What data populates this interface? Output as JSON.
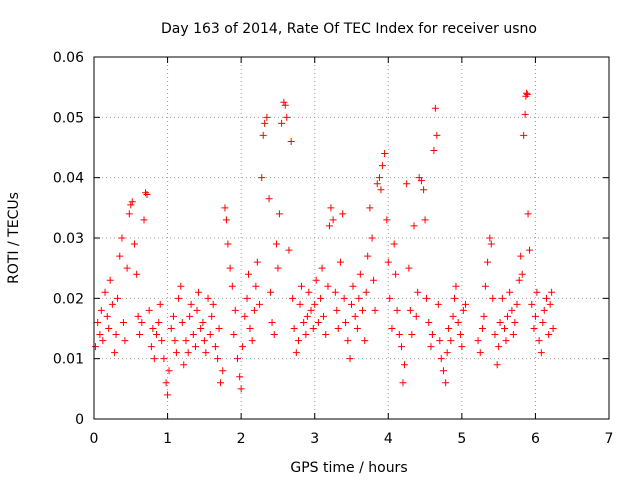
{
  "chart_data": {
    "type": "scatter",
    "title": "Day 163 of 2014, Rate Of TEC Index for receiver usno",
    "xlabel": "GPS time / hours",
    "ylabel": "ROTI / TECUs",
    "xlim": [
      0,
      7
    ],
    "ylim": [
      0,
      0.06
    ],
    "xticks": [
      0,
      1,
      2,
      3,
      4,
      5,
      6,
      7
    ],
    "xtick_labels": [
      "0",
      "1",
      "2",
      "3",
      "4",
      "5",
      "6",
      "7"
    ],
    "yticks": [
      0,
      0.01,
      0.02,
      0.03,
      0.04,
      0.05,
      0.06
    ],
    "ytick_labels": [
      "0",
      "0.01",
      "0.02",
      "0.03",
      "0.04",
      "0.05",
      "0.06"
    ],
    "grid": true,
    "marker": "plus",
    "color": "#ff0000",
    "points": [
      [
        0.02,
        0.012
      ],
      [
        0.05,
        0.016
      ],
      [
        0.08,
        0.014
      ],
      [
        0.1,
        0.018
      ],
      [
        0.12,
        0.013
      ],
      [
        0.15,
        0.021
      ],
      [
        0.18,
        0.017
      ],
      [
        0.2,
        0.015
      ],
      [
        0.22,
        0.023
      ],
      [
        0.25,
        0.019
      ],
      [
        0.28,
        0.011
      ],
      [
        0.3,
        0.014
      ],
      [
        0.32,
        0.02
      ],
      [
        0.35,
        0.027
      ],
      [
        0.38,
        0.03
      ],
      [
        0.4,
        0.016
      ],
      [
        0.42,
        0.013
      ],
      [
        0.45,
        0.025
      ],
      [
        0.48,
        0.034
      ],
      [
        0.5,
        0.0355
      ],
      [
        0.52,
        0.036
      ],
      [
        0.55,
        0.029
      ],
      [
        0.58,
        0.024
      ],
      [
        0.6,
        0.017
      ],
      [
        0.62,
        0.014
      ],
      [
        0.65,
        0.016
      ],
      [
        0.68,
        0.033
      ],
      [
        0.7,
        0.0375
      ],
      [
        0.72,
        0.0372
      ],
      [
        0.75,
        0.018
      ],
      [
        0.78,
        0.012
      ],
      [
        0.8,
        0.015
      ],
      [
        0.82,
        0.01
      ],
      [
        0.85,
        0.014
      ],
      [
        0.88,
        0.016
      ],
      [
        0.9,
        0.019
      ],
      [
        0.92,
        0.013
      ],
      [
        0.95,
        0.01
      ],
      [
        0.98,
        0.006
      ],
      [
        1.0,
        0.004
      ],
      [
        1.02,
        0.008
      ],
      [
        1.05,
        0.015
      ],
      [
        1.08,
        0.017
      ],
      [
        1.1,
        0.013
      ],
      [
        1.12,
        0.011
      ],
      [
        1.15,
        0.02
      ],
      [
        1.18,
        0.022
      ],
      [
        1.2,
        0.016
      ],
      [
        1.22,
        0.009
      ],
      [
        1.25,
        0.013
      ],
      [
        1.28,
        0.011
      ],
      [
        1.3,
        0.017
      ],
      [
        1.32,
        0.019
      ],
      [
        1.35,
        0.014
      ],
      [
        1.38,
        0.012
      ],
      [
        1.4,
        0.018
      ],
      [
        1.42,
        0.021
      ],
      [
        1.45,
        0.015
      ],
      [
        1.48,
        0.016
      ],
      [
        1.5,
        0.013
      ],
      [
        1.52,
        0.011
      ],
      [
        1.55,
        0.02
      ],
      [
        1.58,
        0.014
      ],
      [
        1.6,
        0.017
      ],
      [
        1.62,
        0.019
      ],
      [
        1.65,
        0.012
      ],
      [
        1.68,
        0.01
      ],
      [
        1.7,
        0.015
      ],
      [
        1.72,
        0.006
      ],
      [
        1.75,
        0.008
      ],
      [
        1.78,
        0.035
      ],
      [
        1.8,
        0.033
      ],
      [
        1.82,
        0.029
      ],
      [
        1.85,
        0.025
      ],
      [
        1.88,
        0.022
      ],
      [
        1.9,
        0.014
      ],
      [
        1.92,
        0.018
      ],
      [
        1.95,
        0.01
      ],
      [
        1.98,
        0.007
      ],
      [
        2.0,
        0.005
      ],
      [
        2.02,
        0.012
      ],
      [
        2.05,
        0.017
      ],
      [
        2.08,
        0.02
      ],
      [
        2.1,
        0.024
      ],
      [
        2.12,
        0.015
      ],
      [
        2.15,
        0.013
      ],
      [
        2.18,
        0.018
      ],
      [
        2.2,
        0.022
      ],
      [
        2.22,
        0.026
      ],
      [
        2.25,
        0.019
      ],
      [
        2.28,
        0.04
      ],
      [
        2.3,
        0.047
      ],
      [
        2.32,
        0.049
      ],
      [
        2.35,
        0.05
      ],
      [
        2.38,
        0.0365
      ],
      [
        2.4,
        0.021
      ],
      [
        2.42,
        0.016
      ],
      [
        2.45,
        0.014
      ],
      [
        2.48,
        0.029
      ],
      [
        2.5,
        0.025
      ],
      [
        2.52,
        0.034
      ],
      [
        2.55,
        0.049
      ],
      [
        2.58,
        0.0525
      ],
      [
        2.6,
        0.052
      ],
      [
        2.62,
        0.05
      ],
      [
        2.65,
        0.028
      ],
      [
        2.68,
        0.046
      ],
      [
        2.7,
        0.02
      ],
      [
        2.72,
        0.015
      ],
      [
        2.75,
        0.011
      ],
      [
        2.78,
        0.013
      ],
      [
        2.8,
        0.019
      ],
      [
        2.82,
        0.022
      ],
      [
        2.85,
        0.016
      ],
      [
        2.88,
        0.014
      ],
      [
        2.9,
        0.017
      ],
      [
        2.92,
        0.021
      ],
      [
        2.95,
        0.018
      ],
      [
        2.98,
        0.015
      ],
      [
        3.0,
        0.019
      ],
      [
        3.02,
        0.023
      ],
      [
        3.05,
        0.016
      ],
      [
        3.08,
        0.02
      ],
      [
        3.1,
        0.025
      ],
      [
        3.12,
        0.017
      ],
      [
        3.15,
        0.014
      ],
      [
        3.18,
        0.022
      ],
      [
        3.2,
        0.032
      ],
      [
        3.22,
        0.035
      ],
      [
        3.25,
        0.033
      ],
      [
        3.28,
        0.021
      ],
      [
        3.3,
        0.018
      ],
      [
        3.32,
        0.015
      ],
      [
        3.35,
        0.026
      ],
      [
        3.38,
        0.034
      ],
      [
        3.4,
        0.02
      ],
      [
        3.42,
        0.016
      ],
      [
        3.45,
        0.013
      ],
      [
        3.48,
        0.01
      ],
      [
        3.5,
        0.019
      ],
      [
        3.52,
        0.022
      ],
      [
        3.55,
        0.017
      ],
      [
        3.58,
        0.015
      ],
      [
        3.6,
        0.02
      ],
      [
        3.62,
        0.024
      ],
      [
        3.65,
        0.018
      ],
      [
        3.68,
        0.013
      ],
      [
        3.7,
        0.021
      ],
      [
        3.72,
        0.027
      ],
      [
        3.75,
        0.035
      ],
      [
        3.78,
        0.03
      ],
      [
        3.8,
        0.023
      ],
      [
        3.82,
        0.018
      ],
      [
        3.85,
        0.039
      ],
      [
        3.88,
        0.04
      ],
      [
        3.9,
        0.038
      ],
      [
        3.92,
        0.042
      ],
      [
        3.95,
        0.044
      ],
      [
        3.98,
        0.033
      ],
      [
        4.0,
        0.026
      ],
      [
        4.02,
        0.02
      ],
      [
        4.05,
        0.015
      ],
      [
        4.08,
        0.029
      ],
      [
        4.1,
        0.024
      ],
      [
        4.12,
        0.018
      ],
      [
        4.15,
        0.014
      ],
      [
        4.18,
        0.012
      ],
      [
        4.2,
        0.006
      ],
      [
        4.22,
        0.009
      ],
      [
        4.25,
        0.039
      ],
      [
        4.28,
        0.025
      ],
      [
        4.3,
        0.018
      ],
      [
        4.32,
        0.014
      ],
      [
        4.35,
        0.032
      ],
      [
        4.38,
        0.017
      ],
      [
        4.4,
        0.021
      ],
      [
        4.42,
        0.04
      ],
      [
        4.45,
        0.0395
      ],
      [
        4.48,
        0.038
      ],
      [
        4.5,
        0.033
      ],
      [
        4.52,
        0.02
      ],
      [
        4.55,
        0.016
      ],
      [
        4.58,
        0.012
      ],
      [
        4.6,
        0.014
      ],
      [
        4.62,
        0.0445
      ],
      [
        4.64,
        0.0515
      ],
      [
        4.66,
        0.047
      ],
      [
        4.68,
        0.019
      ],
      [
        4.7,
        0.013
      ],
      [
        4.72,
        0.01
      ],
      [
        4.75,
        0.008
      ],
      [
        4.78,
        0.006
      ],
      [
        4.8,
        0.011
      ],
      [
        4.82,
        0.015
      ],
      [
        4.85,
        0.013
      ],
      [
        4.88,
        0.017
      ],
      [
        4.9,
        0.02
      ],
      [
        4.92,
        0.022
      ],
      [
        4.95,
        0.016
      ],
      [
        4.98,
        0.014
      ],
      [
        5.0,
        0.012
      ],
      [
        5.02,
        0.018
      ],
      [
        5.05,
        0.019
      ],
      [
        5.22,
        0.013
      ],
      [
        5.25,
        0.011
      ],
      [
        5.28,
        0.015
      ],
      [
        5.3,
        0.017
      ],
      [
        5.32,
        0.022
      ],
      [
        5.35,
        0.026
      ],
      [
        5.38,
        0.03
      ],
      [
        5.4,
        0.029
      ],
      [
        5.42,
        0.02
      ],
      [
        5.45,
        0.014
      ],
      [
        5.48,
        0.009
      ],
      [
        5.5,
        0.012
      ],
      [
        5.52,
        0.016
      ],
      [
        5.55,
        0.02
      ],
      [
        5.58,
        0.015
      ],
      [
        5.6,
        0.013
      ],
      [
        5.62,
        0.017
      ],
      [
        5.65,
        0.021
      ],
      [
        5.68,
        0.018
      ],
      [
        5.7,
        0.014
      ],
      [
        5.72,
        0.016
      ],
      [
        5.75,
        0.019
      ],
      [
        5.78,
        0.023
      ],
      [
        5.8,
        0.027
      ],
      [
        5.82,
        0.024
      ],
      [
        5.84,
        0.047
      ],
      [
        5.86,
        0.0505
      ],
      [
        5.87,
        0.0535
      ],
      [
        5.88,
        0.054
      ],
      [
        5.89,
        0.0538
      ],
      [
        5.9,
        0.034
      ],
      [
        5.92,
        0.028
      ],
      [
        5.95,
        0.019
      ],
      [
        5.98,
        0.015
      ],
      [
        6.0,
        0.017
      ],
      [
        6.02,
        0.021
      ],
      [
        6.05,
        0.013
      ],
      [
        6.08,
        0.011
      ],
      [
        6.1,
        0.016
      ],
      [
        6.12,
        0.018
      ],
      [
        6.15,
        0.02
      ],
      [
        6.18,
        0.014
      ],
      [
        6.2,
        0.019
      ],
      [
        6.22,
        0.021
      ],
      [
        6.24,
        0.015
      ]
    ]
  }
}
